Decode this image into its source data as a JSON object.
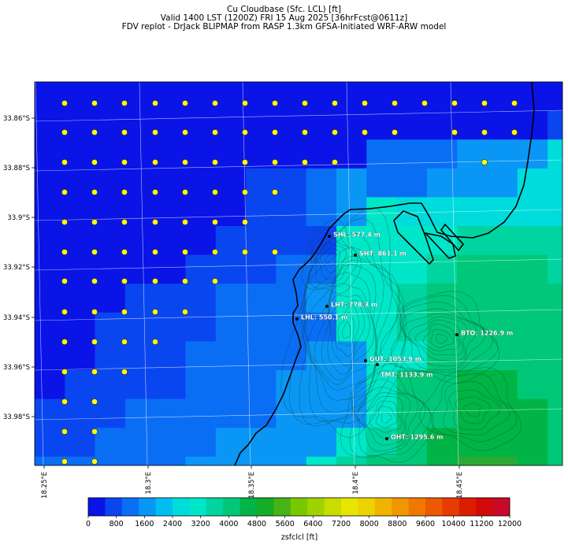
{
  "title": {
    "line1": "Cu Cloudbase (Sfc. LCL) [ft]",
    "line2": "Valid 1400 LST (1200Z) FRI 15 Aug 2025 [36hrFcst@0611z]",
    "line3": "FDV replot - DrJack BLIPMAP from RASP 1.3km GFSA-Initiated WRF-ARW model"
  },
  "lat_ticks": [
    "33.86°S",
    "33.88°S",
    "33.9°S",
    "33.92°S",
    "33.94°S",
    "33.96°S",
    "33.98°S"
  ],
  "lon_ticks": [
    "18.25°E",
    "18.3°E",
    "18.35°E",
    "18.4°E",
    "18.45°E"
  ],
  "stations": [
    {
      "code": "SHL",
      "label": "SHL: 577.4 m"
    },
    {
      "code": "SHT",
      "label": "SHT: 861.1 m"
    },
    {
      "code": "LHT",
      "label": "LHT: 778.3 m"
    },
    {
      "code": "LHL",
      "label": "LHL: 550.1 m"
    },
    {
      "code": "BTO",
      "label": "BTO: 1226.9 m"
    },
    {
      "code": "GUT",
      "label": "GUT: 1053.9 m"
    },
    {
      "code": "TMT",
      "label": "TMT: 1133.9 m"
    },
    {
      "code": "OHT",
      "label": "OHT: 1295.6 m"
    }
  ],
  "colorbar": {
    "ticks": [
      "0",
      "800",
      "1600",
      "2400",
      "3200",
      "4000",
      "4800",
      "5600",
      "6400",
      "7200",
      "8000",
      "8800",
      "9600",
      "10400",
      "11200",
      "12000"
    ],
    "label": "zsfclcl [ft]",
    "colors": [
      "#0a14e6",
      "#0a46f0",
      "#0a6ef5",
      "#0a96f5",
      "#00bef0",
      "#00dcdc",
      "#00e6c8",
      "#00d4a0",
      "#00c878",
      "#00b446",
      "#14ac28",
      "#46b414",
      "#78c800",
      "#a0d200",
      "#c8dc00",
      "#e6e600",
      "#ebd200",
      "#f0b400",
      "#f09600",
      "#f07800",
      "#eb5a00",
      "#e63c00",
      "#dc1e00",
      "#d20a0a",
      "#c80a28"
    ]
  },
  "colors": {
    "dot_fill": "#ffff00",
    "coast": "#000000"
  }
}
